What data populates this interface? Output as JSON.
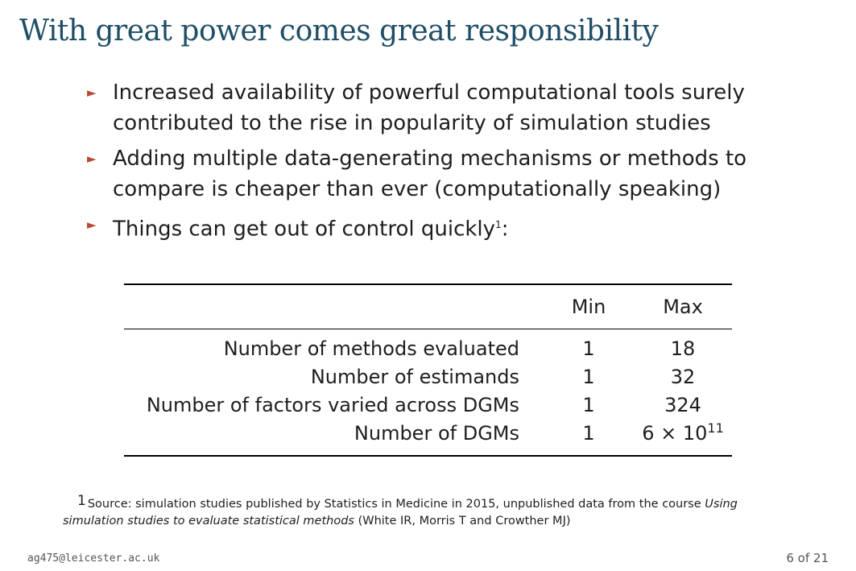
{
  "slide": {
    "title": "With great power comes great responsibility",
    "bullet_marker": "►",
    "bullets": [
      {
        "text": "Increased availability of powerful computational tools surely contributed to the rise in popularity of simulation studies"
      },
      {
        "text": "Adding multiple data-generating mechanisms or methods to compare is cheaper than ever (computationally speaking)"
      },
      {
        "text": "Things can get out of control quickly",
        "footnote_ref": "1",
        "suffix": ":"
      }
    ]
  },
  "table": {
    "headers": [
      "",
      "Min",
      "Max"
    ],
    "rows": [
      {
        "label": "Number of methods evaluated",
        "min": "1",
        "max": "18"
      },
      {
        "label": "Number of estimands",
        "min": "1",
        "max": "32"
      },
      {
        "label": "Number of factors varied across DGMs",
        "min": "1",
        "max": "324"
      },
      {
        "label": "Number of DGMs",
        "min": "1",
        "max_base": "6 × 10",
        "max_exp": "11"
      }
    ]
  },
  "footnote": {
    "mark": "1",
    "text_before": "Source: simulation studies published by Statistics in Medicine in 2015, unpublished data from the course ",
    "italic": "Using simulation studies to evaluate statistical methods",
    "text_after": " (White IR, Morris T and Crowther MJ)"
  },
  "footer": {
    "email": "ag475@leicester.ac.uk",
    "page": "6 of 21"
  }
}
